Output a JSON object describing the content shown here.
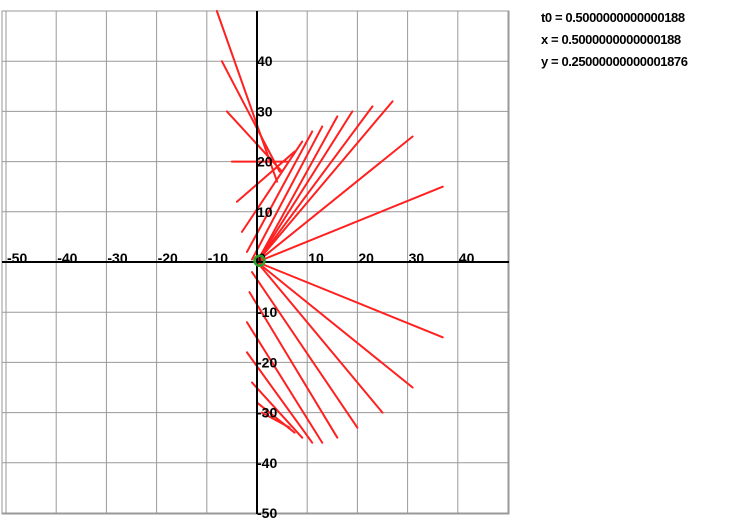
{
  "readout": {
    "t0": "t0 = 0.5000000000000188",
    "x": "x = 0.5000000000000188",
    "y": "y = 0.25000000000001876"
  },
  "colors": {
    "background": "#ffffff",
    "grid": "#999999",
    "axis": "#000000",
    "lines": "#ff2020",
    "point": "#2aa02a"
  },
  "chart_data": {
    "type": "line",
    "title": "",
    "xlabel": "",
    "ylabel": "",
    "xlim": [
      -51,
      50
    ],
    "ylim": [
      -50,
      50
    ],
    "grid": true,
    "grid_step": 10,
    "x_ticks": [
      "-50",
      "-40",
      "-30",
      "-20",
      "-10",
      "0",
      "10",
      "20",
      "30",
      "40"
    ],
    "y_ticks": [
      "40",
      "30",
      "20",
      "10",
      "-10",
      "-20",
      "-30",
      "-40",
      "-50"
    ],
    "point": {
      "x": 0.5,
      "y": 0.25
    },
    "series": [
      {
        "values": [
          [
            -8,
            50
          ],
          [
            4,
            16
          ]
        ]
      },
      {
        "values": [
          [
            -7,
            40
          ],
          [
            4.5,
            18
          ]
        ]
      },
      {
        "values": [
          [
            -6,
            30
          ],
          [
            5,
            18
          ]
        ]
      },
      {
        "values": [
          [
            -5,
            20
          ],
          [
            6,
            20
          ]
        ]
      },
      {
        "values": [
          [
            -4,
            12
          ],
          [
            7.5,
            22
          ]
        ]
      },
      {
        "values": [
          [
            -3,
            6
          ],
          [
            9,
            24
          ]
        ]
      },
      {
        "values": [
          [
            -2,
            2
          ],
          [
            11,
            26
          ]
        ]
      },
      {
        "values": [
          [
            -1,
            0.5
          ],
          [
            13,
            27
          ]
        ]
      },
      {
        "values": [
          [
            0,
            0
          ],
          [
            16,
            29
          ]
        ]
      },
      {
        "values": [
          [
            0,
            0
          ],
          [
            19,
            30
          ]
        ]
      },
      {
        "values": [
          [
            0,
            0
          ],
          [
            23,
            31
          ]
        ]
      },
      {
        "values": [
          [
            0,
            0
          ],
          [
            27,
            32
          ]
        ]
      },
      {
        "values": [
          [
            0,
            0
          ],
          [
            31,
            25
          ]
        ]
      },
      {
        "values": [
          [
            0,
            0
          ],
          [
            37,
            15
          ]
        ]
      },
      {
        "values": [
          [
            0,
            0
          ],
          [
            37,
            0
          ]
        ]
      },
      {
        "values": [
          [
            0,
            0
          ],
          [
            37,
            -15
          ]
        ]
      },
      {
        "values": [
          [
            0,
            0
          ],
          [
            31,
            -25
          ]
        ]
      },
      {
        "values": [
          [
            0,
            0
          ],
          [
            25,
            -30
          ]
        ]
      },
      {
        "values": [
          [
            -1,
            -2
          ],
          [
            20,
            -33
          ]
        ]
      },
      {
        "values": [
          [
            -1.5,
            -6
          ],
          [
            16,
            -35
          ]
        ]
      },
      {
        "values": [
          [
            -2,
            -12
          ],
          [
            13,
            -36
          ]
        ]
      },
      {
        "values": [
          [
            -2,
            -18
          ],
          [
            11,
            -36
          ]
        ]
      },
      {
        "values": [
          [
            -1,
            -24
          ],
          [
            9,
            -35
          ]
        ]
      },
      {
        "values": [
          [
            0,
            -28
          ],
          [
            7.5,
            -34
          ]
        ]
      },
      {
        "values": [
          [
            1,
            -30
          ],
          [
            6.5,
            -33
          ]
        ]
      }
    ]
  }
}
